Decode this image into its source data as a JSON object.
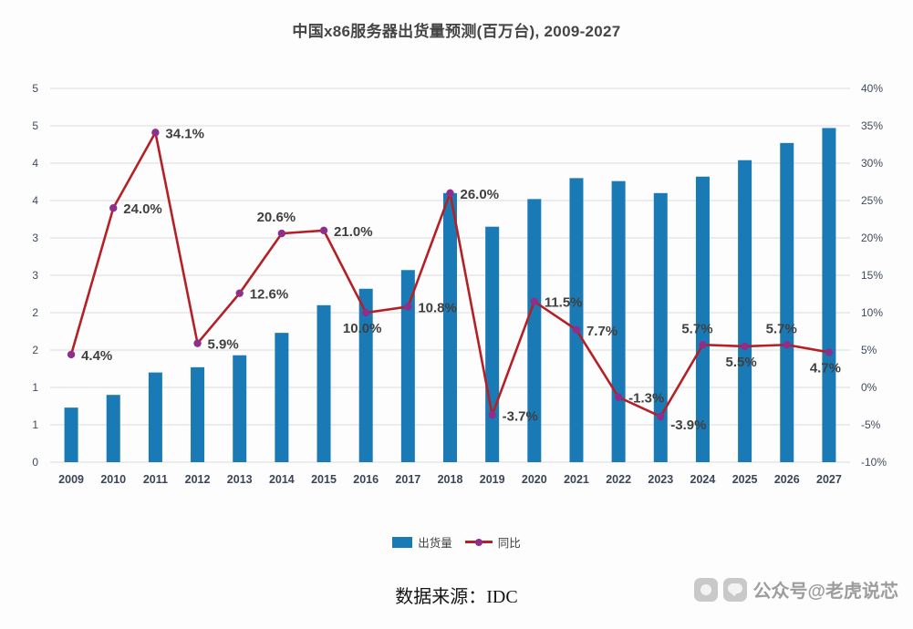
{
  "page": {
    "background": "#fdfdfd"
  },
  "source_text": "数据来源：IDC",
  "watermark": {
    "text": "公众号@老虎说芯"
  },
  "chart_data": {
    "type": "combo",
    "title": "中国x86服务器出货量预测(百万台), 2009-2027",
    "categories": [
      "2009",
      "2010",
      "2011",
      "2012",
      "2013",
      "2014",
      "2015",
      "2016",
      "2017",
      "2018",
      "2019",
      "2020",
      "2021",
      "2022",
      "2023",
      "2024",
      "2025",
      "2026",
      "2027"
    ],
    "series": [
      {
        "name": "出货量",
        "kind": "bar",
        "axis": "left",
        "color": "#1a7ab5",
        "values": [
          0.73,
          0.9,
          1.2,
          1.27,
          1.43,
          1.73,
          2.1,
          2.32,
          2.57,
          3.6,
          3.15,
          3.52,
          3.8,
          3.76,
          3.6,
          3.82,
          4.04,
          4.27,
          4.47
        ]
      },
      {
        "name": "同比",
        "kind": "line",
        "axis": "right",
        "color": "#b42025",
        "marker_color": "#8e2f8c",
        "values": [
          4.4,
          24.0,
          34.1,
          5.9,
          12.6,
          20.6,
          21.0,
          10.0,
          10.8,
          26.0,
          -3.7,
          11.5,
          7.7,
          -1.3,
          -3.9,
          5.7,
          5.5,
          5.7,
          4.7
        ],
        "labels": [
          "4.4%",
          "24.0%",
          "34.1%",
          "5.9%",
          "12.6%",
          "20.6%",
          "21.0%",
          "10.0%",
          "10.8%",
          "26.0%",
          "-3.7%",
          "11.5%",
          "7.7%",
          "-1.3%",
          "-3.9%",
          "5.7%",
          "5.5%",
          "5.7%",
          "4.7%"
        ],
        "label_pos": [
          "right",
          "right",
          "right",
          "right",
          "right",
          "above",
          "right",
          "below",
          "right",
          "right",
          "right",
          "right",
          "right",
          "right",
          "below-right",
          "above",
          "below",
          "above",
          "below"
        ]
      }
    ],
    "left_axis": {
      "min": 0,
      "max": 5,
      "tick_labels": [
        "5",
        "5",
        "4",
        "4",
        "3",
        "3",
        "2",
        "2",
        "1",
        "1",
        "0"
      ]
    },
    "right_axis": {
      "min": -10,
      "max": 40,
      "tick_labels": [
        "40%",
        "35%",
        "30%",
        "25%",
        "20%",
        "15%",
        "10%",
        "5%",
        "0%",
        "-5%",
        "-10%"
      ]
    },
    "grid": true,
    "grid_color": "#dcdcdc",
    "legend_position": "bottom"
  }
}
